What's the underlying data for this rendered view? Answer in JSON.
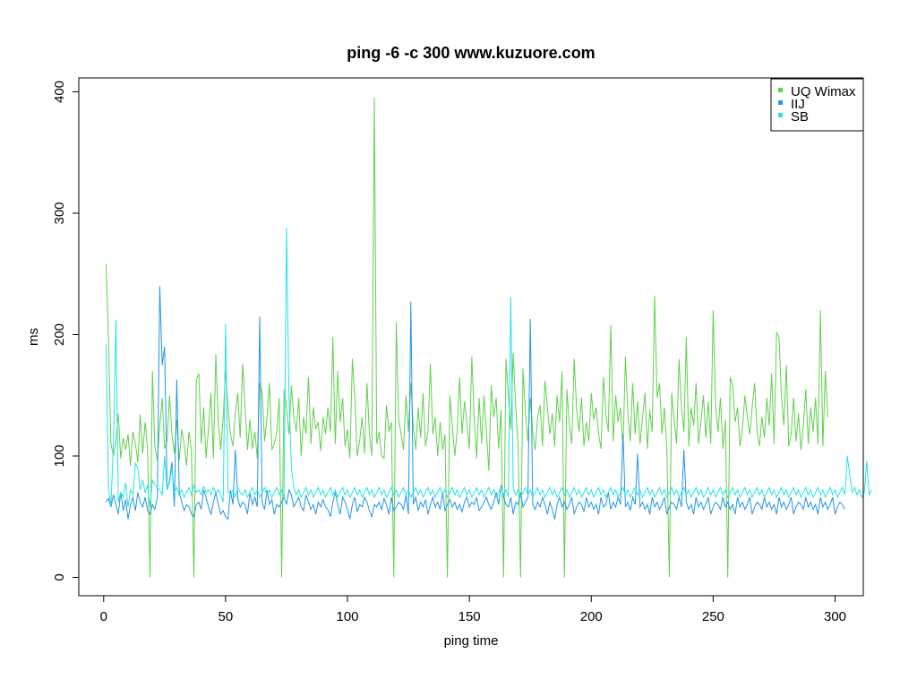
{
  "chart_data": {
    "type": "line",
    "title": "ping -6 -c 300 www.kuzuore.com",
    "xlabel": "ping time",
    "ylabel": "ms",
    "xlim": [
      1,
      300
    ],
    "ylim": [
      0,
      400
    ],
    "x_ticks": [
      0,
      50,
      100,
      150,
      200,
      250,
      300
    ],
    "y_ticks": [
      0,
      100,
      200,
      300,
      400
    ],
    "legend_position": "top-right",
    "grid": false,
    "series": [
      {
        "name": "UQ Wimax",
        "color": "#61d04f",
        "values": [
          258,
          195,
          110,
          100,
          112,
          135,
          98,
          115,
          105,
          118,
          92,
          120,
          110,
          95,
          134,
          102,
          128,
          106,
          0,
          170,
          108,
          96,
          125,
          148,
          106,
          112,
          150,
          118,
          102,
          130,
          96,
          122,
          110,
          92,
          120,
          104,
          0,
          162,
          168,
          110,
          140,
          98,
          122,
          152,
          98,
          184,
          128,
          105,
          132,
          170,
          140,
          118,
          108,
          136,
          152,
          115,
          176,
          140,
          105,
          130,
          106,
          120,
          98,
          160,
          152,
          112,
          132,
          160,
          105,
          110,
          120,
          148,
          0,
          155,
          140,
          118,
          158,
          132,
          120,
          148,
          100,
          132,
          118,
          165,
          110,
          140,
          122,
          128,
          104,
          132,
          118,
          140,
          120,
          198,
          110,
          170,
          128,
          148,
          108,
          122,
          98,
          180,
          148,
          100,
          112,
          132,
          102,
          160,
          118,
          100,
          395,
          110,
          120,
          100,
          98,
          142,
          120,
          128,
          0,
          210,
          130,
          118,
          105,
          150,
          120,
          160,
          125,
          105,
          140,
          115,
          152,
          108,
          120,
          176,
          118,
          132,
          100,
          128,
          105,
          118,
          0,
          150,
          125,
          100,
          120,
          165,
          118,
          145,
          128,
          106,
          182,
          130,
          98,
          148,
          110,
          150,
          120,
          88,
          158,
          132,
          148,
          106,
          138,
          0,
          180,
          150,
          122,
          185,
          140,
          108,
          0,
          172,
          135,
          112,
          148,
          120,
          105,
          132,
          142,
          108,
          162,
          140,
          118,
          135,
          108,
          150,
          128,
          170,
          0,
          155,
          126,
          110,
          180,
          138,
          120,
          148,
          108,
          128,
          112,
          152,
          130,
          140,
          118,
          106,
          165,
          135,
          120,
          208,
          112,
          150,
          128,
          140,
          105,
          182,
          136,
          112,
          160,
          118,
          145,
          110,
          130,
          152,
          106,
          138,
          120,
          232,
          148,
          160,
          118,
          140,
          105,
          0,
          152,
          130,
          110,
          180,
          140,
          120,
          198,
          108,
          140,
          125,
          160,
          110,
          128,
          150,
          115,
          145,
          110,
          220,
          140,
          120,
          148,
          106,
          130,
          0,
          165,
          158,
          128,
          140,
          108,
          122,
          150,
          132,
          118,
          140,
          160,
          120,
          108,
          132,
          115,
          148,
          125,
          168,
          110,
          202,
          198,
          150,
          125,
          175,
          108,
          118,
          148,
          112,
          135,
          105,
          125,
          155,
          110,
          140,
          120,
          148,
          110,
          220,
          108,
          170,
          132
        ]
      },
      {
        "name": "IIJ",
        "color": "#2297e6",
        "values": [
          62,
          65,
          58,
          68,
          60,
          52,
          70,
          55,
          64,
          48,
          60,
          66,
          55,
          70,
          62,
          58,
          66,
          55,
          52,
          60,
          56,
          66,
          240,
          175,
          190,
          72,
          80,
          95,
          58,
          163,
          70,
          62,
          55,
          60,
          58,
          52,
          50,
          60,
          62,
          56,
          72,
          66,
          58,
          52,
          62,
          70,
          60,
          52,
          55,
          50,
          48,
          72,
          60,
          105,
          65,
          58,
          62,
          60,
          52,
          70,
          60,
          66,
          58,
          215,
          62,
          56,
          72,
          60,
          64,
          52,
          60,
          58,
          62,
          66,
          60,
          72,
          68,
          58,
          62,
          66,
          58,
          55,
          68,
          62,
          56,
          60,
          52,
          62,
          58,
          64,
          58,
          56,
          50,
          62,
          70,
          60,
          52,
          66,
          62,
          56,
          48,
          60,
          66,
          54,
          60,
          58,
          66,
          62,
          55,
          50,
          60,
          58,
          62,
          56,
          65,
          60,
          52,
          66,
          55,
          58,
          62,
          60,
          56,
          68,
          52,
          227,
          60,
          66,
          55,
          62,
          58,
          64,
          52,
          60,
          66,
          58,
          62,
          56,
          70,
          55,
          60,
          64,
          58,
          62,
          56,
          60,
          54,
          62,
          66,
          58,
          62,
          60,
          66,
          55,
          58,
          62,
          66,
          60,
          56,
          62,
          70,
          60,
          76,
          66,
          60,
          58,
          66,
          52,
          62,
          60,
          70,
          58,
          62,
          66,
          213,
          60,
          56,
          62,
          58,
          66,
          60,
          52,
          62,
          56,
          48,
          60,
          66,
          58,
          62,
          56,
          60,
          66,
          52,
          58,
          62,
          60,
          54,
          66,
          58,
          62,
          56,
          60,
          52,
          66,
          58,
          60,
          70,
          56,
          62,
          58,
          66,
          60,
          118,
          58,
          62,
          55,
          66,
          60,
          102,
          58,
          62,
          56,
          60,
          52,
          66,
          58,
          62,
          56,
          60,
          66,
          52,
          58,
          62,
          60,
          56,
          66,
          58,
          105,
          62,
          56,
          60,
          52,
          66,
          58,
          62,
          56,
          60,
          66,
          52,
          58,
          62,
          60,
          56,
          66,
          58,
          62,
          56,
          60,
          52,
          66,
          58,
          62,
          56,
          60,
          66,
          52,
          58,
          62,
          60,
          56,
          66,
          58,
          62,
          56,
          60,
          52,
          66,
          58,
          62,
          56,
          60,
          66,
          52,
          58,
          62,
          60,
          56,
          66,
          58,
          62,
          56,
          60,
          52,
          66,
          58,
          62,
          56,
          60,
          66,
          52,
          58,
          62,
          60,
          56
        ]
      },
      {
        "name": "SB",
        "color": "#28e2e5",
        "values": [
          192,
          72,
          60,
          110,
          212,
          62,
          70,
          66,
          78,
          58,
          72,
          68,
          94,
          90,
          72,
          80,
          70,
          76,
          58,
          80,
          76,
          74,
          72,
          68,
          100,
          72,
          78,
          90,
          70,
          74,
          68,
          72,
          66,
          70,
          74,
          68,
          76,
          70,
          72,
          68,
          75,
          70,
          72,
          68,
          74,
          70,
          72,
          68,
          62,
          209,
          70,
          68,
          72,
          66,
          74,
          70,
          68,
          72,
          66,
          70,
          74,
          68,
          72,
          66,
          70,
          74,
          68,
          72,
          66,
          70,
          74,
          68,
          72,
          66,
          288,
          148,
          90,
          74,
          68,
          72,
          66,
          70,
          74,
          68,
          72,
          66,
          70,
          74,
          68,
          72,
          66,
          70,
          74,
          68,
          72,
          66,
          70,
          74,
          68,
          72,
          66,
          70,
          74,
          68,
          72,
          66,
          70,
          74,
          68,
          72,
          66,
          70,
          74,
          68,
          72,
          66,
          70,
          74,
          68,
          72,
          66,
          70,
          74,
          68,
          72,
          66,
          70,
          74,
          68,
          72,
          66,
          70,
          74,
          68,
          72,
          66,
          70,
          74,
          68,
          72,
          66,
          70,
          74,
          68,
          72,
          66,
          70,
          74,
          68,
          72,
          66,
          70,
          74,
          68,
          72,
          66,
          70,
          74,
          68,
          72,
          66,
          70,
          74,
          68,
          72,
          66,
          231,
          74,
          68,
          72,
          66,
          70,
          74,
          68,
          72,
          66,
          70,
          74,
          68,
          72,
          66,
          70,
          74,
          68,
          72,
          66,
          70,
          74,
          68,
          72,
          66,
          70,
          74,
          68,
          72,
          66,
          70,
          74,
          68,
          72,
          66,
          70,
          74,
          68,
          72,
          66,
          70,
          74,
          68,
          72,
          66,
          70,
          74,
          68,
          72,
          66,
          70,
          74,
          68,
          72,
          66,
          70,
          74,
          68,
          72,
          66,
          70,
          74,
          68,
          72,
          66,
          70,
          74,
          68,
          72,
          66,
          70,
          74,
          68,
          72,
          66,
          70,
          74,
          68,
          72,
          66,
          70,
          74,
          68,
          72,
          66,
          70,
          74,
          68,
          72,
          66,
          70,
          74,
          68,
          72,
          66,
          70,
          74,
          68,
          72,
          66,
          70,
          74,
          68,
          72,
          66,
          70,
          74,
          68,
          72,
          66,
          70,
          74,
          68,
          72,
          66,
          70,
          74,
          68,
          72,
          66,
          70,
          74,
          68,
          72,
          66,
          70,
          74,
          68,
          72,
          66,
          70,
          74,
          68,
          72,
          66,
          70,
          74,
          68,
          100,
          86,
          70,
          74,
          68,
          72,
          66,
          70,
          96,
          68,
          72
        ]
      }
    ]
  }
}
